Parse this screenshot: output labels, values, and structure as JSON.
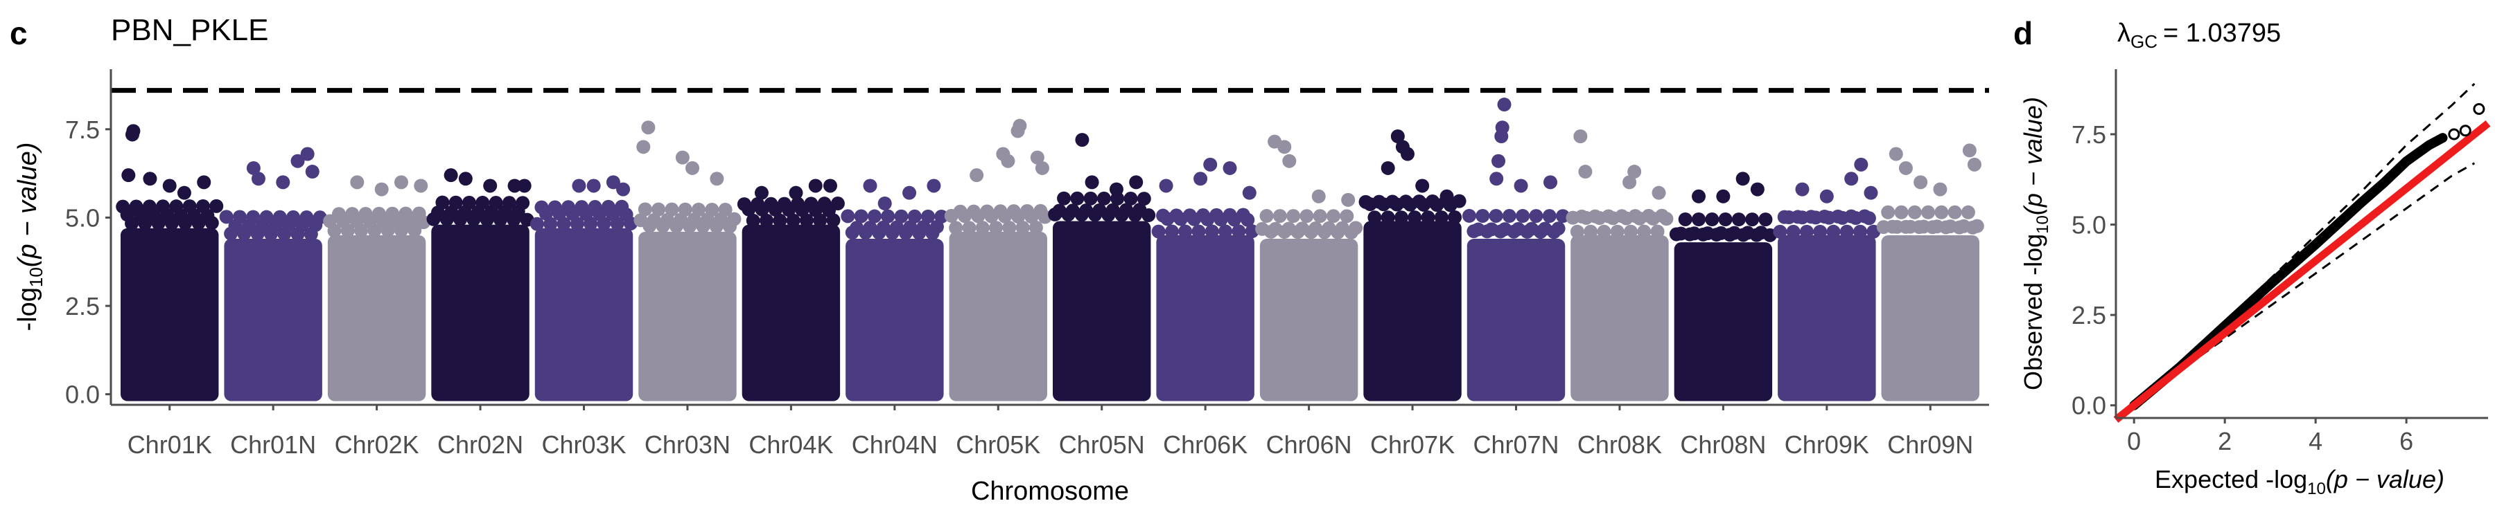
{
  "panel_c": {
    "letter": "c",
    "title": "PBN_PKLE",
    "ylabel_pre": "-log",
    "ylabel_sub": "10",
    "ylabel_post": "(p − value)",
    "xlabel": "Chromosome"
  },
  "panel_d": {
    "letter": "d",
    "lambda_symbol": "λ",
    "lambda_sub": "GC",
    "lambda_value": "= 1.03795",
    "ylabel_pre": "Observed -log",
    "ylabel_sub": "10",
    "ylabel_post": "(p − value)",
    "xlabel_pre": "Expected -log",
    "xlabel_sub": "10",
    "xlabel_post": "(p − value)"
  },
  "colors": {
    "dark": "#1e1240",
    "purple": "#4b3b80",
    "grey": "#9490a1",
    "threshold": "#000000",
    "qq_line": "#ee1c1c",
    "qq_points": "#000000",
    "axis": "#4d4d4d"
  },
  "chart_data": [
    {
      "type": "scatter",
      "subtype": "manhattan",
      "ylim": [
        -0.3,
        9.2
      ],
      "yticks": [
        "0.0",
        "2.5",
        "5.0",
        "7.5"
      ],
      "yticks_values": [
        0,
        2.5,
        5,
        7.5
      ],
      "threshold": 8.6,
      "grid": false,
      "legend": "none",
      "categories": [
        "Chr01K",
        "Chr01N",
        "Chr02K",
        "Chr02N",
        "Chr03K",
        "Chr03N",
        "Chr04K",
        "Chr04N",
        "Chr05K",
        "Chr05N",
        "Chr06K",
        "Chr06N",
        "Chr07K",
        "Chr07N",
        "Chr08K",
        "Chr08N",
        "Chr09K",
        "Chr09N"
      ],
      "chromosome_color": [
        "dark",
        "purple",
        "grey",
        "dark",
        "purple",
        "grey",
        "dark",
        "purple",
        "grey",
        "dark",
        "purple",
        "grey",
        "dark",
        "purple",
        "grey",
        "dark",
        "purple",
        "grey"
      ],
      "dense_top": [
        5.3,
        5.0,
        5.1,
        5.4,
        5.3,
        5.2,
        5.4,
        5.0,
        5.2,
        5.5,
        5.1,
        5.0,
        5.5,
        5.0,
        5.1,
        4.9,
        5.1,
        5.1
      ],
      "peaks": [
        [
          [
            0.12,
            7.35
          ],
          [
            0.13,
            7.45
          ],
          [
            0.08,
            6.2
          ],
          [
            0.3,
            6.1
          ],
          [
            0.5,
            5.9
          ],
          [
            0.85,
            6.0
          ],
          [
            0.65,
            5.7
          ]
        ],
        [
          [
            0.85,
            6.8
          ],
          [
            0.75,
            6.6
          ],
          [
            0.3,
            6.4
          ],
          [
            0.35,
            6.1
          ],
          [
            0.6,
            6.0
          ],
          [
            0.9,
            6.3
          ]
        ],
        [
          [
            0.3,
            6.0
          ],
          [
            0.75,
            6.0
          ],
          [
            0.95,
            5.9
          ],
          [
            0.55,
            5.8
          ]
        ],
        [
          [
            0.2,
            6.2
          ],
          [
            0.35,
            6.1
          ],
          [
            0.6,
            5.9
          ],
          [
            0.85,
            5.9
          ],
          [
            0.95,
            5.9
          ]
        ],
        [
          [
            0.45,
            5.9
          ],
          [
            0.6,
            5.9
          ],
          [
            0.8,
            6.0
          ],
          [
            0.9,
            5.8
          ]
        ],
        [
          [
            0.05,
            7.0
          ],
          [
            0.1,
            7.55
          ],
          [
            0.45,
            6.7
          ],
          [
            0.55,
            6.4
          ],
          [
            0.8,
            6.1
          ]
        ],
        [
          [
            0.2,
            5.7
          ],
          [
            0.55,
            5.7
          ],
          [
            0.75,
            5.9
          ],
          [
            0.9,
            5.9
          ]
        ],
        [
          [
            0.25,
            5.9
          ],
          [
            0.4,
            5.4
          ],
          [
            0.65,
            5.7
          ],
          [
            0.9,
            5.9
          ]
        ],
        [
          [
            0.28,
            6.2
          ],
          [
            0.55,
            6.8
          ],
          [
            0.6,
            6.6
          ],
          [
            0.7,
            7.45
          ],
          [
            0.72,
            7.6
          ],
          [
            0.9,
            6.7
          ],
          [
            0.95,
            6.4
          ]
        ],
        [
          [
            0.3,
            7.2
          ],
          [
            0.4,
            6.0
          ],
          [
            0.85,
            6.0
          ],
          [
            0.65,
            5.8
          ]
        ],
        [
          [
            0.1,
            5.9
          ],
          [
            0.45,
            6.1
          ],
          [
            0.55,
            6.5
          ],
          [
            0.75,
            6.4
          ],
          [
            0.95,
            5.7
          ]
        ],
        [
          [
            0.15,
            7.15
          ],
          [
            0.25,
            7.0
          ],
          [
            0.3,
            6.6
          ],
          [
            0.6,
            5.6
          ],
          [
            0.9,
            5.5
          ]
        ],
        [
          [
            0.25,
            6.4
          ],
          [
            0.35,
            7.3
          ],
          [
            0.4,
            7.0
          ],
          [
            0.45,
            6.8
          ],
          [
            0.6,
            5.9
          ],
          [
            0.85,
            5.6
          ]
        ],
        [
          [
            0.38,
            8.2
          ],
          [
            0.36,
            7.55
          ],
          [
            0.35,
            7.3
          ],
          [
            0.32,
            6.6
          ],
          [
            0.3,
            6.1
          ],
          [
            0.55,
            5.9
          ],
          [
            0.85,
            6.0
          ]
        ],
        [
          [
            0.1,
            7.3
          ],
          [
            0.15,
            6.3
          ],
          [
            0.6,
            6.0
          ],
          [
            0.65,
            6.3
          ],
          [
            0.9,
            5.7
          ]
        ],
        [
          [
            0.25,
            5.6
          ],
          [
            0.5,
            5.6
          ],
          [
            0.7,
            6.1
          ],
          [
            0.85,
            5.8
          ]
        ],
        [
          [
            0.25,
            5.8
          ],
          [
            0.5,
            5.6
          ],
          [
            0.75,
            6.1
          ],
          [
            0.85,
            6.5
          ],
          [
            0.95,
            5.7
          ]
        ],
        [
          [
            0.15,
            6.8
          ],
          [
            0.25,
            6.4
          ],
          [
            0.4,
            6.0
          ],
          [
            0.6,
            5.8
          ],
          [
            0.9,
            6.9
          ],
          [
            0.95,
            6.5
          ]
        ]
      ]
    },
    {
      "type": "scatter",
      "subtype": "qq",
      "xlim": [
        -0.4,
        7.8
      ],
      "ylim": [
        -0.35,
        9.3
      ],
      "xticks": [
        "0",
        "2",
        "4",
        "6"
      ],
      "xticks_values": [
        0,
        2,
        4,
        6
      ],
      "yticks": [
        "0.0",
        "2.5",
        "5.0",
        "7.5"
      ],
      "yticks_values": [
        0,
        2.5,
        5,
        7.5
      ],
      "grid": false,
      "legend": "none",
      "reference_line": [
        [
          -0.4,
          -0.4
        ],
        [
          7.8,
          7.8
        ]
      ],
      "upper_band": [
        [
          0,
          0
        ],
        [
          1,
          1.1
        ],
        [
          2,
          2.3
        ],
        [
          3,
          3.5
        ],
        [
          4,
          4.7
        ],
        [
          5,
          5.9
        ],
        [
          6,
          7.2
        ],
        [
          7,
          8.3
        ],
        [
          7.5,
          8.9
        ]
      ],
      "lower_band": [
        [
          0,
          0
        ],
        [
          1,
          0.95
        ],
        [
          2,
          1.85
        ],
        [
          3,
          2.75
        ],
        [
          4,
          3.65
        ],
        [
          5,
          4.55
        ],
        [
          6,
          5.45
        ],
        [
          7,
          6.35
        ],
        [
          7.5,
          6.7
        ]
      ],
      "points_curve": [
        [
          0,
          0
        ],
        [
          1,
          1.05
        ],
        [
          2,
          2.2
        ],
        [
          3,
          3.35
        ],
        [
          4,
          4.45
        ],
        [
          5,
          5.6
        ],
        [
          5.5,
          6.15
        ],
        [
          6,
          6.75
        ],
        [
          6.5,
          7.2
        ],
        [
          6.8,
          7.4
        ]
      ],
      "tail_points": [
        [
          7.05,
          7.5
        ],
        [
          7.3,
          7.6
        ],
        [
          7.6,
          8.2
        ]
      ]
    }
  ]
}
